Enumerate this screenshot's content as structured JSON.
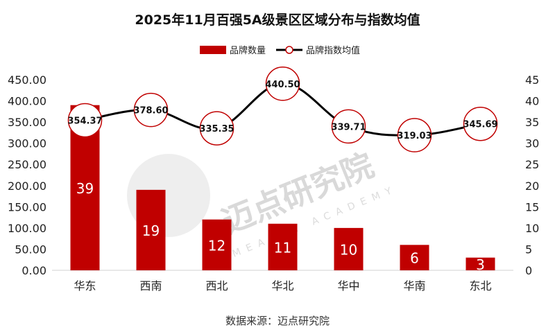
{
  "title": "2025年11月百强5A级景区区域分布与指数均值",
  "source": "数据来源：迈点研究院",
  "watermark": {
    "text": "迈点研究院",
    "subtext": "MEADIN ACADEMY"
  },
  "chart_data": {
    "type": "bar+line",
    "title": "2025年11月百强5A级景区区域分布与指数均值",
    "categories": [
      "华东",
      "西南",
      "西北",
      "华北",
      "华中",
      "华南",
      "东北"
    ],
    "series": [
      {
        "name": "品牌数量",
        "type": "bar",
        "axis": "right",
        "values": [
          39,
          19,
          12,
          11,
          10,
          6,
          3
        ],
        "color": "#c00000"
      },
      {
        "name": "品牌指数均值",
        "type": "line",
        "axis": "left",
        "values": [
          354.37,
          378.6,
          335.35,
          440.5,
          339.71,
          319.03,
          345.69
        ],
        "color": "#000000"
      }
    ],
    "left_axis": {
      "min": 0,
      "max": 450,
      "step": 50,
      "tick_labels": [
        "0.00",
        "50.00",
        "100.00",
        "150.00",
        "200.00",
        "250.00",
        "300.00",
        "350.00",
        "400.00",
        "450.00"
      ]
    },
    "right_axis": {
      "min": 0,
      "max": 45,
      "step": 5,
      "tick_labels": [
        "0",
        "5",
        "10",
        "15",
        "20",
        "25",
        "30",
        "35",
        "40",
        "45"
      ]
    },
    "bar_labels": [
      "39",
      "19",
      "12",
      "11",
      "10",
      "6",
      "3"
    ],
    "line_labels": [
      "354.37",
      "378.60",
      "335.35",
      "440.50",
      "339.71",
      "319.03",
      "345.69"
    ],
    "legend": {
      "position": "top",
      "items": [
        "品牌数量",
        "品牌指数均值"
      ]
    }
  }
}
